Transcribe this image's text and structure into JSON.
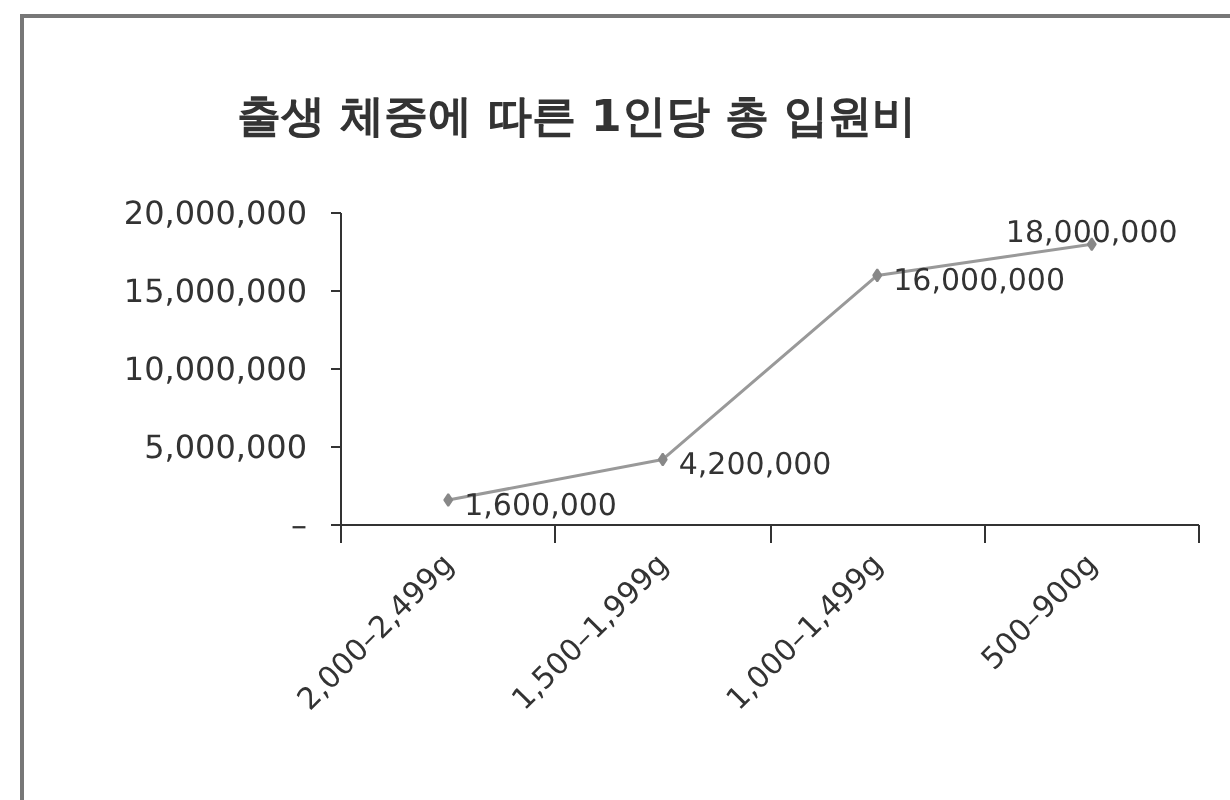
{
  "chart_data": {
    "type": "line",
    "title": "출생 체중에 따른 1인당 총 입원비",
    "categories": [
      "2,000–2,499g",
      "1,500–1,999g",
      "1,000–1,499g",
      "500–900g"
    ],
    "series": [
      {
        "color": "#999999",
        "values": [
          1600000,
          4200000,
          16000000,
          18000000
        ],
        "value_labels": [
          "1,600,000",
          "4,200,000",
          "16,000,000",
          "18,000,000"
        ]
      }
    ],
    "ylim": [
      0,
      20000000
    ],
    "yticks": [
      {
        "value": 0,
        "label": "–"
      },
      {
        "value": 5000000,
        "label": "5,000,000"
      },
      {
        "value": 10000000,
        "label": "10,000,000"
      },
      {
        "value": 15000000,
        "label": "15,000,000"
      },
      {
        "value": 20000000,
        "label": "20,000,000"
      }
    ],
    "marker": "diamond",
    "line_style": "solid",
    "grid": false
  }
}
